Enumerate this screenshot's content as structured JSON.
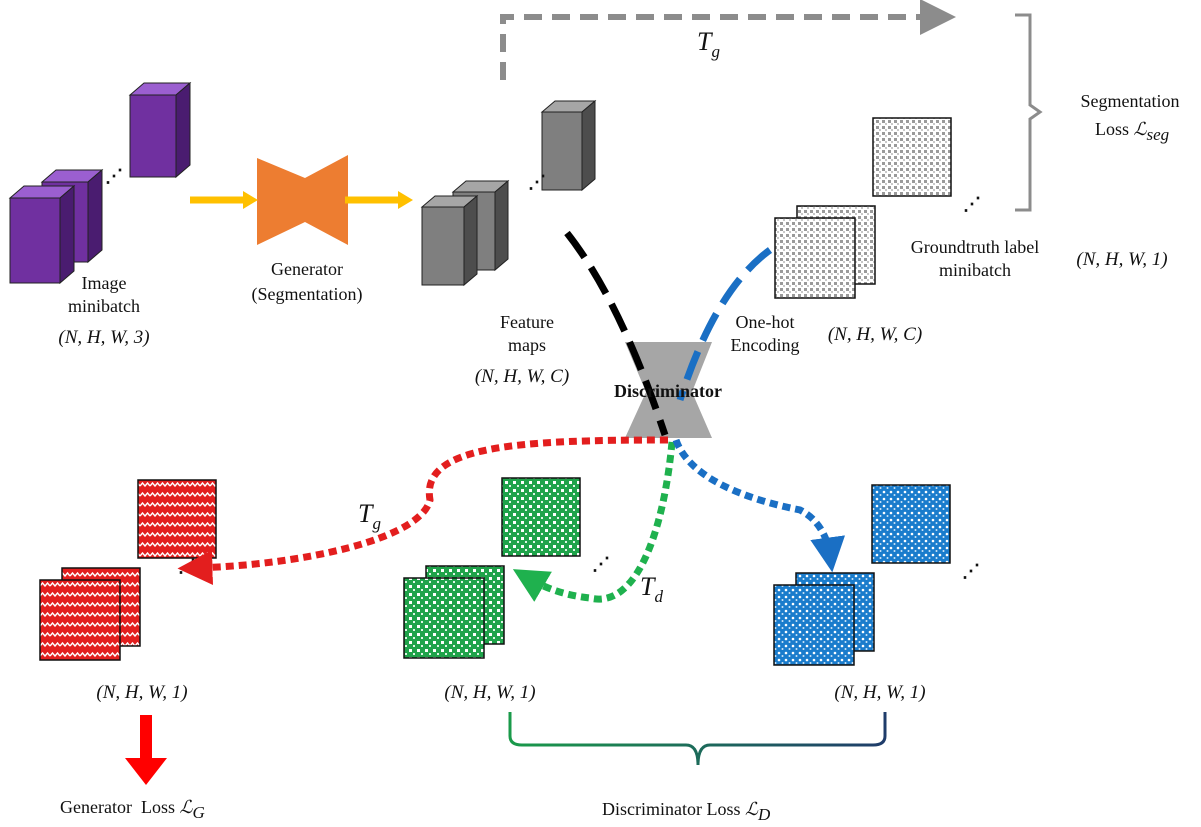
{
  "image_minibatch": {
    "label": [
      "Image",
      "minibatch"
    ],
    "shape": "(N, H, W, 3)"
  },
  "generator": {
    "label": [
      "Generator",
      "(Segmentation)"
    ]
  },
  "feature_maps": {
    "label": [
      "Feature",
      "maps"
    ],
    "shape": "(N, H, W, C)"
  },
  "discriminator": {
    "label": "Discriminator"
  },
  "one_hot": {
    "label": [
      "One-hot",
      "Encoding"
    ],
    "shape": "(N, H, W, C)"
  },
  "groundtruth": {
    "label": [
      "Groundtruth label",
      "minibatch"
    ],
    "shape": "(N, H, W, 1)"
  },
  "seg_path": {
    "symbol": "T",
    "subscript": "g"
  },
  "seg_loss": {
    "label": [
      "Segmentation",
      "Loss"
    ],
    "symbol": "ℒ",
    "subscript": "seg"
  },
  "fake_path": {
    "symbol": "T",
    "subscript": "g"
  },
  "real_path": {
    "symbol": "T",
    "subscript": "d"
  },
  "outputs": [
    {
      "shape": "(N, H, W, 1)"
    },
    {
      "shape": "(N, H, W, 1)"
    },
    {
      "shape": "(N, H, W, 1)"
    }
  ],
  "generator_loss": {
    "label": "Generator  Loss",
    "symbol": "ℒ",
    "subscript": "G"
  },
  "discriminator_loss": {
    "label": "Discriminator Loss",
    "symbol": "ℒ",
    "subscript": "D"
  }
}
